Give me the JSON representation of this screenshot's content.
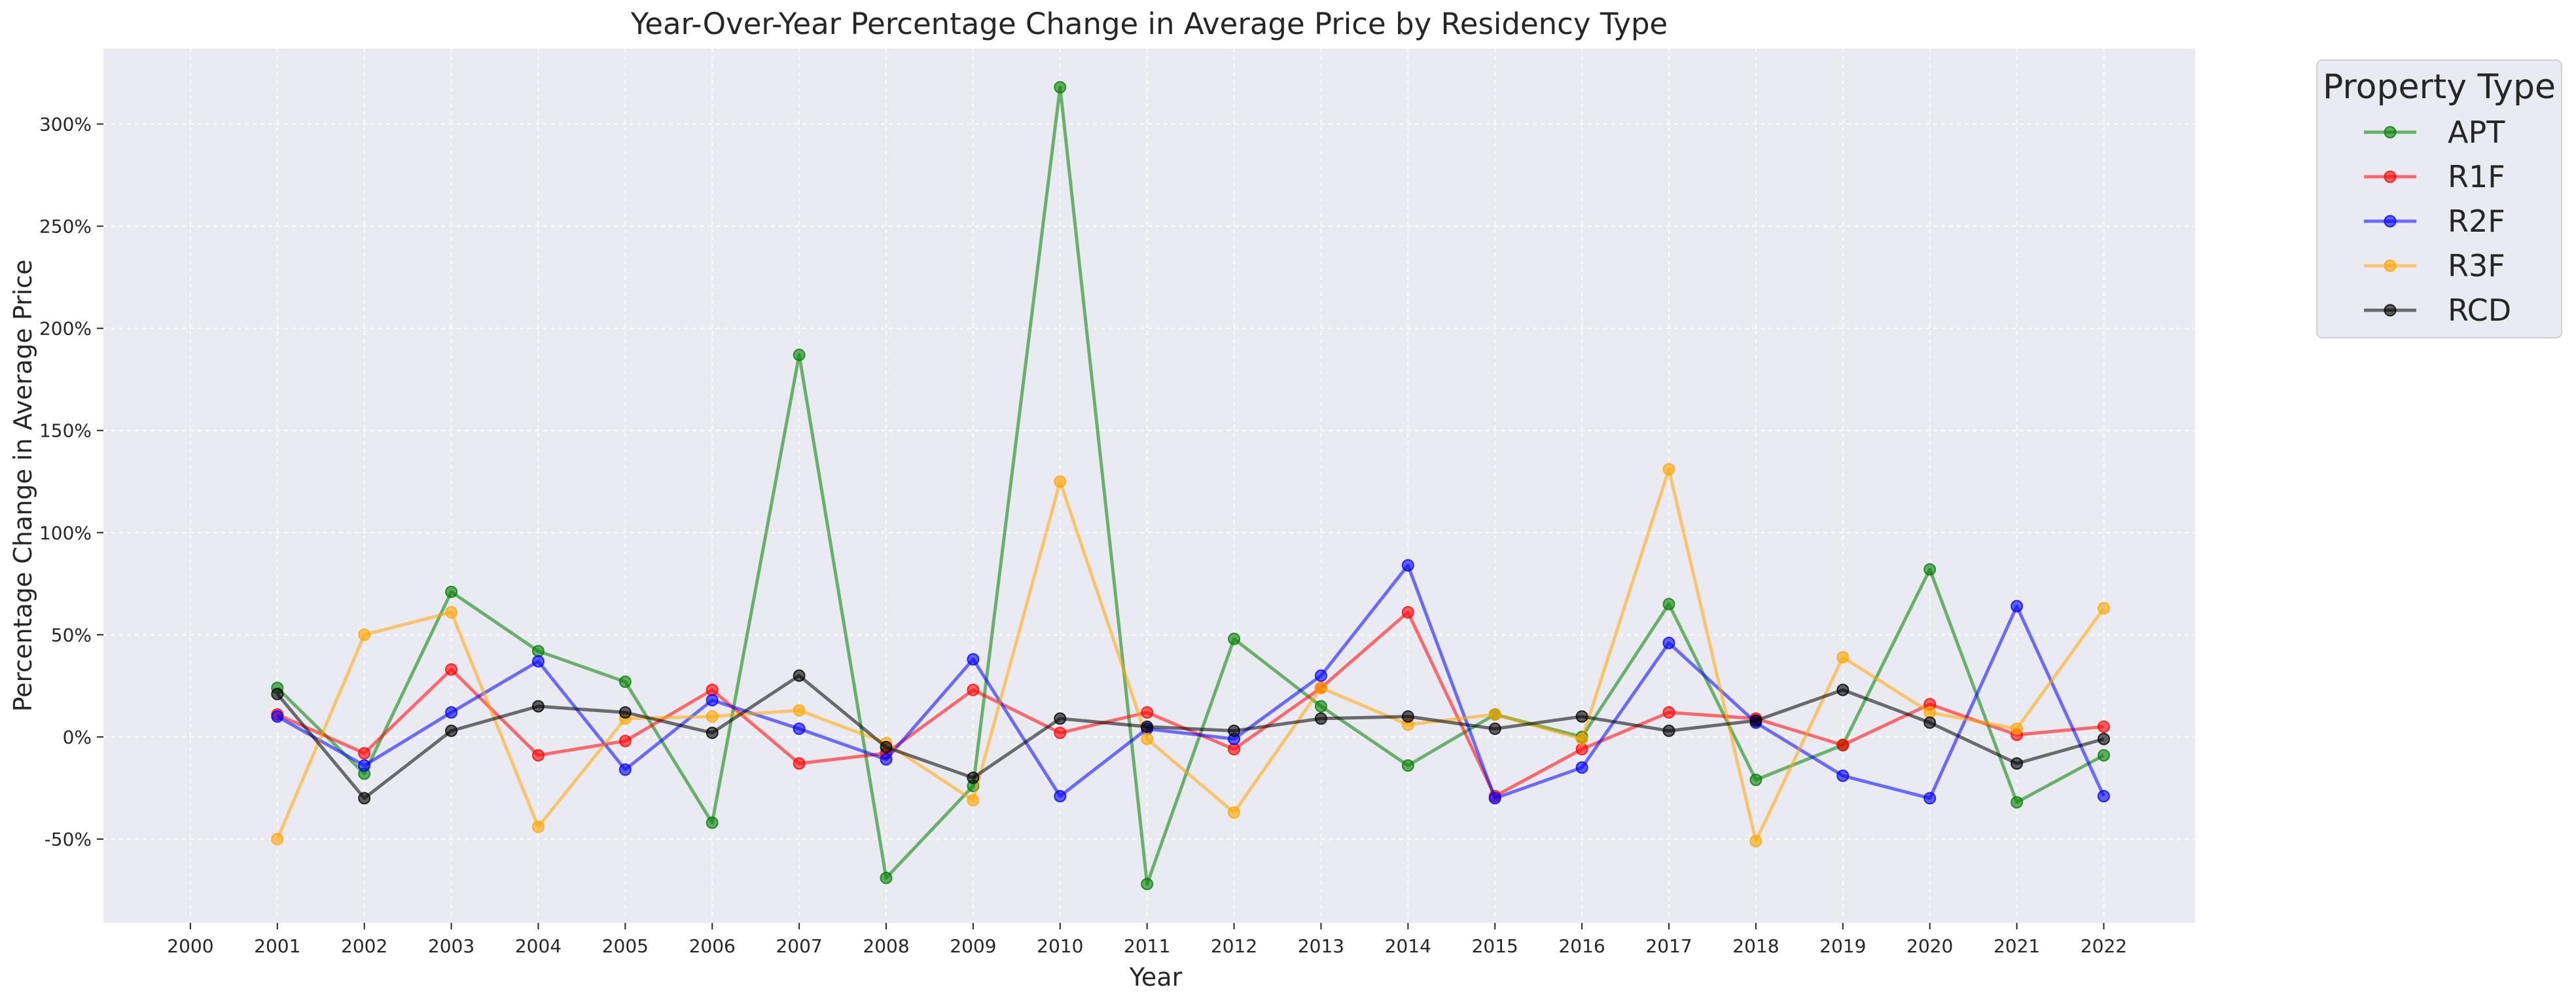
{
  "chart_data": {
    "type": "line",
    "title": "Year-Over-Year Percentage Change in Average Price by Residency Type",
    "xlabel": "Year",
    "ylabel": "Percentage Change in Average Price",
    "x_ticks": [
      "2000",
      "2001",
      "2002",
      "2003",
      "2004",
      "2005",
      "2006",
      "2007",
      "2008",
      "2009",
      "2010",
      "2011",
      "2012",
      "2013",
      "2014",
      "2015",
      "2016",
      "2017",
      "2018",
      "2019",
      "2020",
      "2021",
      "2022"
    ],
    "xlim": [
      1999,
      2023.05
    ],
    "y_ticks": [
      -50,
      0,
      50,
      100,
      150,
      200,
      250,
      300
    ],
    "y_tick_labels": [
      "-50%",
      "0%",
      "50%",
      "100%",
      "150%",
      "200%",
      "250%",
      "300%"
    ],
    "ylim": [
      -91,
      337
    ],
    "grid": true,
    "legend": {
      "title": "Property Type",
      "placement": "outside top-right"
    },
    "x": [
      2001,
      2002,
      2003,
      2004,
      2005,
      2006,
      2007,
      2008,
      2009,
      2010,
      2011,
      2012,
      2013,
      2014,
      2015,
      2016,
      2017,
      2018,
      2019,
      2020,
      2021,
      2022
    ],
    "series": [
      {
        "name": "APT",
        "color": "#008000",
        "values": [
          24,
          -18,
          71,
          42,
          27,
          -42,
          187,
          -69,
          -24,
          318,
          -72,
          48,
          15,
          -14,
          11,
          0,
          65,
          -21,
          -4,
          82,
          -32,
          -9
        ]
      },
      {
        "name": "R1F",
        "color": "#ff0000",
        "values": [
          11,
          -8,
          33,
          -9,
          -2,
          23,
          -13,
          -8,
          23,
          2,
          12,
          -6,
          24,
          61,
          -29,
          -6,
          12,
          9,
          -4,
          16,
          1,
          5
        ]
      },
      {
        "name": "R2F",
        "color": "#0000ff",
        "values": [
          10,
          -14,
          12,
          37,
          -16,
          18,
          4,
          -11,
          38,
          -29,
          4,
          -1,
          30,
          84,
          -30,
          -15,
          46,
          7,
          -19,
          -30,
          64,
          -29
        ]
      },
      {
        "name": "R3F",
        "color": "#ffa500",
        "values": [
          -50,
          50,
          61,
          -44,
          9,
          10,
          13,
          -3,
          -31,
          125,
          -1,
          -37,
          24,
          6,
          11,
          -1,
          131,
          -51,
          39,
          12,
          4,
          63
        ]
      },
      {
        "name": "RCD",
        "color": "#000000",
        "values": [
          21,
          -30,
          3,
          15,
          12,
          2,
          30,
          -5,
          -20,
          9,
          5,
          3,
          9,
          10,
          4,
          10,
          3,
          8,
          23,
          7,
          -13,
          -1
        ]
      }
    ]
  }
}
